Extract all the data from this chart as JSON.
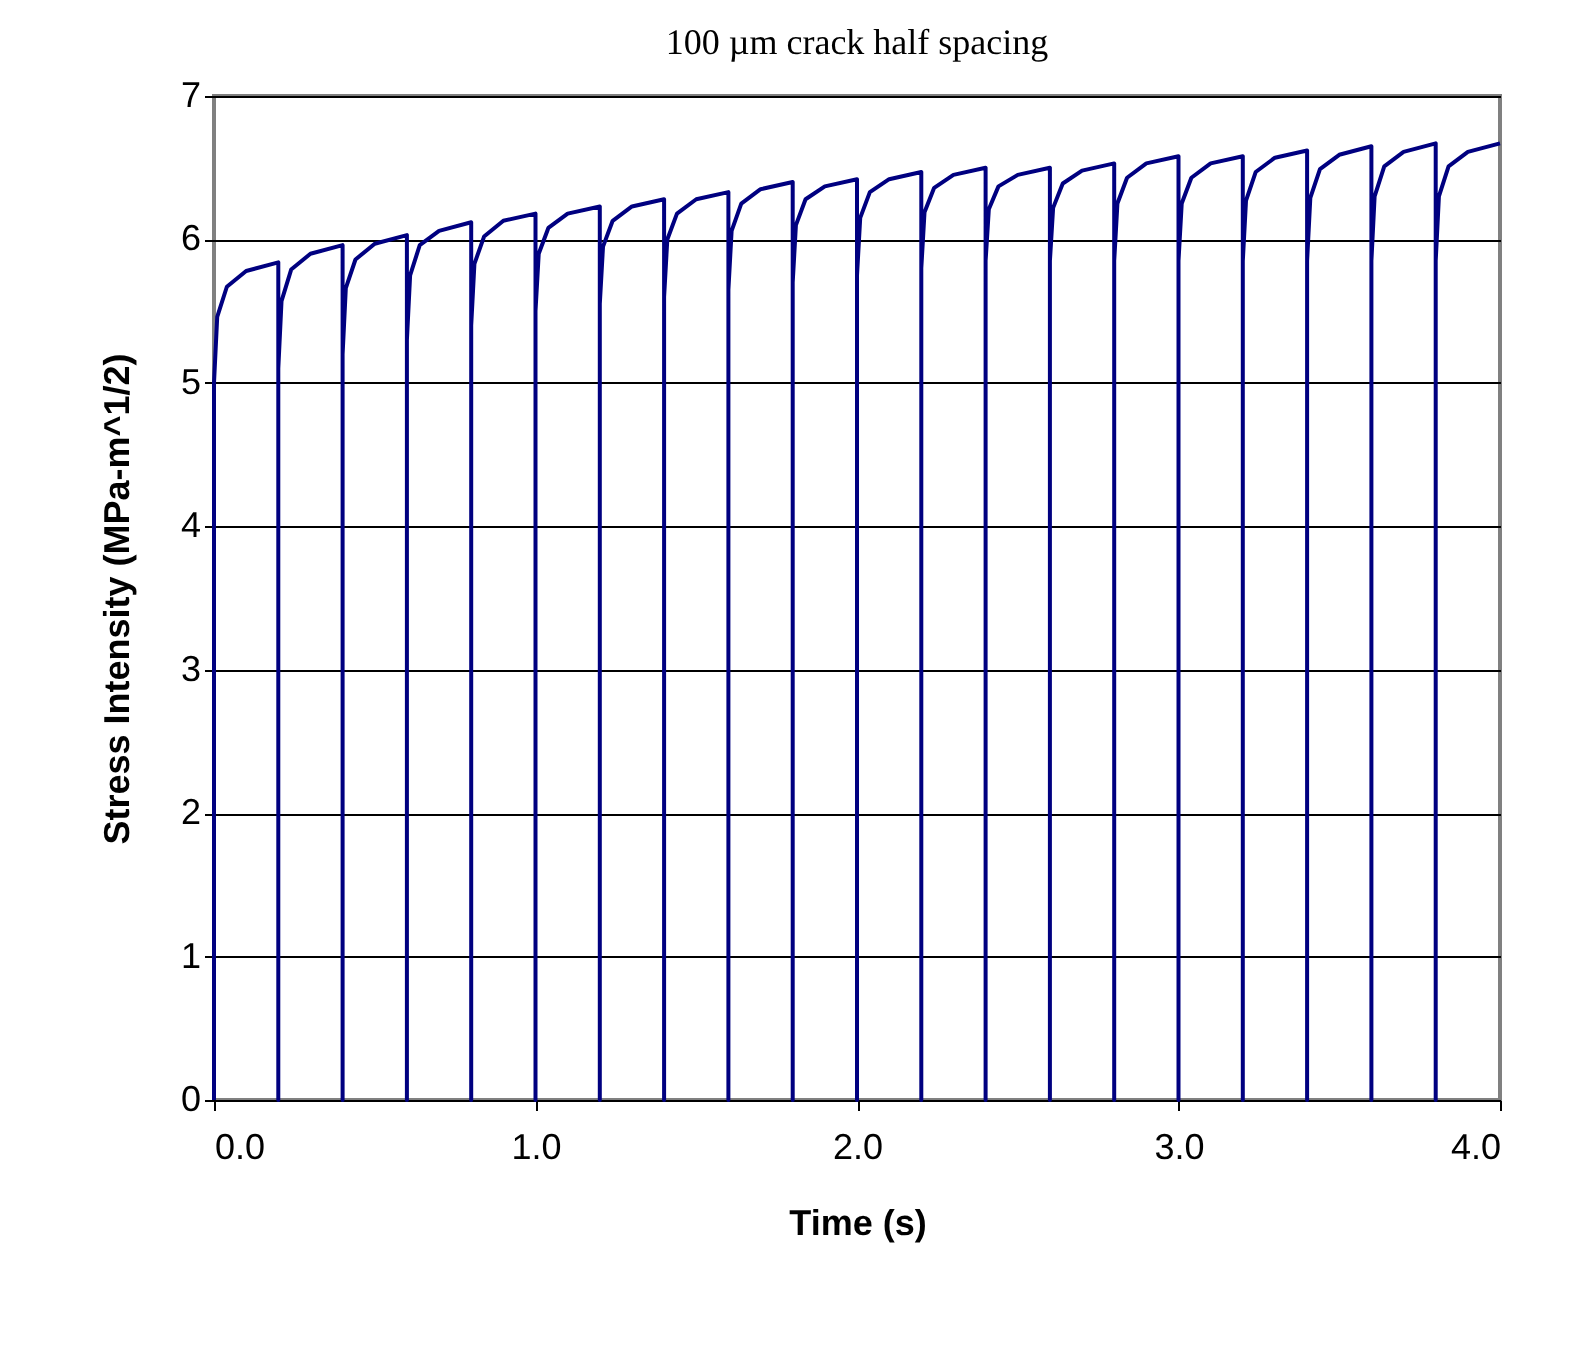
{
  "chart_data": {
    "type": "line",
    "title": "100 µm crack half spacing",
    "xlabel": "Time (s)",
    "ylabel": "Stress Intensity    (MPa-m^1/2)",
    "xlim": [
      0,
      4
    ],
    "xticks": [
      {
        "value": 0,
        "label": "0.0"
      },
      {
        "value": 1,
        "label": "1.0"
      },
      {
        "value": 2,
        "label": "2.0"
      },
      {
        "value": 3,
        "label": "3.0"
      },
      {
        "value": 4,
        "label": "4.0"
      }
    ],
    "ylim": [
      0,
      7
    ],
    "yticks": [
      0,
      1,
      2,
      3,
      4,
      5,
      6,
      7
    ],
    "grid": "y",
    "marker": "none",
    "line_style": "solid",
    "series": [
      {
        "color": "#000080",
        "x": [
          0,
          0,
          0.01,
          0.04,
          0.1,
          0.2,
          0.2,
          0.2,
          0.21,
          0.24,
          0.3,
          0.4,
          0.4,
          0.4,
          0.41,
          0.44,
          0.5,
          0.6,
          0.6,
          0.6,
          0.61,
          0.64,
          0.7,
          0.8,
          0.8,
          0.8,
          0.81,
          0.84,
          0.9,
          1.0,
          1.0,
          1.0,
          1.01,
          1.04,
          1.1,
          1.2,
          1.2,
          1.2,
          1.21,
          1.24,
          1.3,
          1.4,
          1.4,
          1.4,
          1.41,
          1.44,
          1.5,
          1.6,
          1.6,
          1.6,
          1.61,
          1.64,
          1.7,
          1.8,
          1.8,
          1.8,
          1.81,
          1.84,
          1.9,
          2.0,
          2.0,
          2.0,
          2.01,
          2.04,
          2.1,
          2.2,
          2.2,
          2.2,
          2.21,
          2.24,
          2.3,
          2.4,
          2.4,
          2.4,
          2.41,
          2.44,
          2.5,
          2.6,
          2.6,
          2.6,
          2.61,
          2.64,
          2.7,
          2.8,
          2.8,
          2.8,
          2.81,
          2.84,
          2.9,
          3.0,
          3.0,
          3.0,
          3.01,
          3.04,
          3.1,
          3.2,
          3.2,
          3.2,
          3.21,
          3.24,
          3.3,
          3.4,
          3.4,
          3.4,
          3.41,
          3.44,
          3.5,
          3.6,
          3.6,
          3.6,
          3.61,
          3.64,
          3.7,
          3.8,
          3.8,
          3.8,
          3.81,
          3.84,
          3.9,
          4.0
        ],
        "values": [
          0,
          5.0,
          5.46,
          5.67,
          5.78,
          5.84,
          0,
          5.1,
          5.57,
          5.79,
          5.9,
          5.96,
          0,
          5.2,
          5.66,
          5.86,
          5.97,
          6.03,
          0,
          5.3,
          5.75,
          5.96,
          6.06,
          6.12,
          0,
          5.4,
          5.83,
          6.02,
          6.13,
          6.18,
          0,
          5.5,
          5.9,
          6.08,
          6.18,
          6.23,
          0,
          5.55,
          5.95,
          6.13,
          6.23,
          6.28,
          0,
          5.6,
          6.0,
          6.18,
          6.28,
          6.33,
          0,
          5.65,
          6.06,
          6.25,
          6.35,
          6.4,
          0,
          5.7,
          6.1,
          6.28,
          6.37,
          6.42,
          0,
          5.75,
          6.15,
          6.33,
          6.42,
          6.47,
          0,
          5.8,
          6.19,
          6.36,
          6.45,
          6.5,
          0,
          5.85,
          6.21,
          6.37,
          6.45,
          6.5,
          0,
          5.85,
          6.22,
          6.39,
          6.48,
          6.53,
          0,
          5.85,
          6.25,
          6.43,
          6.53,
          6.58,
          0,
          5.85,
          6.25,
          6.43,
          6.53,
          6.58,
          0,
          5.85,
          6.27,
          6.47,
          6.57,
          6.62,
          0,
          5.85,
          6.29,
          6.49,
          6.59,
          6.65,
          0,
          5.85,
          6.3,
          6.51,
          6.61,
          6.67,
          0,
          5.85,
          6.3,
          6.51,
          6.61,
          6.67
        ]
      }
    ]
  }
}
